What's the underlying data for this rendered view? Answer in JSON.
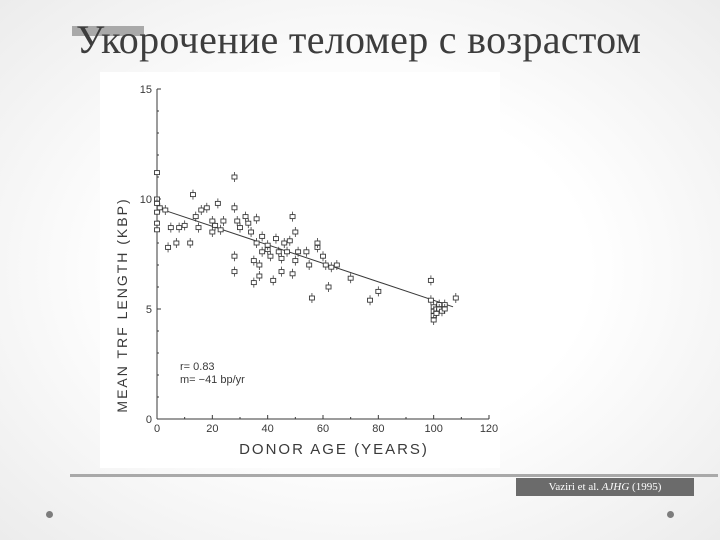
{
  "slide": {
    "title": "Укорочение теломер с возрастом",
    "citation_authors": "Vaziri et al.",
    "citation_journal": "AJHG",
    "citation_year": "(1995)"
  },
  "chart_data": {
    "type": "scatter",
    "xlabel": "DONOR AGE (YEARS)",
    "ylabel": "MEAN TRF LENGTH (KBP)",
    "xlim": [
      0,
      120
    ],
    "ylim": [
      0,
      15
    ],
    "xticks": [
      "0",
      "20",
      "40",
      "60",
      "80",
      "100",
      "120"
    ],
    "yticks": [
      "0",
      "5",
      "10",
      "15"
    ],
    "annotations": [
      "r= 0.83",
      "m= −41 bp/yr"
    ],
    "regression": {
      "x": [
        0,
        107
      ],
      "y": [
        9.6,
        5.1
      ]
    },
    "grid": false,
    "points": [
      [
        0,
        11.2
      ],
      [
        0,
        10.0
      ],
      [
        0,
        9.8
      ],
      [
        0,
        9.4
      ],
      [
        1,
        9.6
      ],
      [
        0,
        8.9
      ],
      [
        0,
        8.6
      ],
      [
        3,
        9.5
      ],
      [
        4,
        7.8
      ],
      [
        5,
        8.7
      ],
      [
        7,
        8.0
      ],
      [
        8,
        8.7
      ],
      [
        10,
        8.8
      ],
      [
        12,
        8.0
      ],
      [
        13,
        10.2
      ],
      [
        14,
        9.2
      ],
      [
        15,
        8.7
      ],
      [
        16,
        9.5
      ],
      [
        18,
        9.6
      ],
      [
        20,
        9.0
      ],
      [
        20,
        8.5
      ],
      [
        21,
        8.8
      ],
      [
        22,
        9.8
      ],
      [
        23,
        8.6
      ],
      [
        24,
        9.0
      ],
      [
        28,
        11.0
      ],
      [
        28,
        9.6
      ],
      [
        29,
        9.0
      ],
      [
        28,
        7.4
      ],
      [
        28,
        6.7
      ],
      [
        30,
        8.7
      ],
      [
        32,
        9.2
      ],
      [
        33,
        8.9
      ],
      [
        34,
        8.5
      ],
      [
        35,
        7.2
      ],
      [
        35,
        6.2
      ],
      [
        36,
        8.0
      ],
      [
        36,
        9.1
      ],
      [
        37,
        7.0
      ],
      [
        37,
        6.5
      ],
      [
        38,
        8.3
      ],
      [
        38,
        7.6
      ],
      [
        40,
        7.7
      ],
      [
        40,
        7.9
      ],
      [
        41,
        7.4
      ],
      [
        42,
        6.3
      ],
      [
        43,
        8.2
      ],
      [
        44,
        7.6
      ],
      [
        45,
        7.3
      ],
      [
        45,
        6.7
      ],
      [
        46,
        8.0
      ],
      [
        47,
        7.6
      ],
      [
        48,
        8.1
      ],
      [
        49,
        6.6
      ],
      [
        50,
        7.2
      ],
      [
        51,
        7.6
      ],
      [
        49,
        9.2
      ],
      [
        50,
        8.5
      ],
      [
        54,
        7.6
      ],
      [
        55,
        7.0
      ],
      [
        56,
        5.5
      ],
      [
        58,
        7.8
      ],
      [
        58,
        8.0
      ],
      [
        60,
        7.4
      ],
      [
        61,
        7.0
      ],
      [
        63,
        6.9
      ],
      [
        62,
        6.0
      ],
      [
        65,
        7.0
      ],
      [
        70,
        6.4
      ],
      [
        77,
        5.4
      ],
      [
        80,
        5.8
      ],
      [
        99,
        6.3
      ],
      [
        99,
        5.4
      ],
      [
        100,
        5.1
      ],
      [
        100,
        4.9
      ],
      [
        100,
        4.7
      ],
      [
        100,
        4.5
      ],
      [
        101,
        5.0
      ],
      [
        101,
        4.8
      ],
      [
        102,
        5.2
      ],
      [
        102,
        5.0
      ],
      [
        103,
        4.9
      ],
      [
        104,
        5.2
      ],
      [
        104,
        5.0
      ],
      [
        108,
        5.5
      ]
    ]
  },
  "colors": {
    "title": "#3d3d3d",
    "plot_ink": "#3a3a3a",
    "citation_bg": "#6b6b6b",
    "rule": "#a9a9a9"
  }
}
